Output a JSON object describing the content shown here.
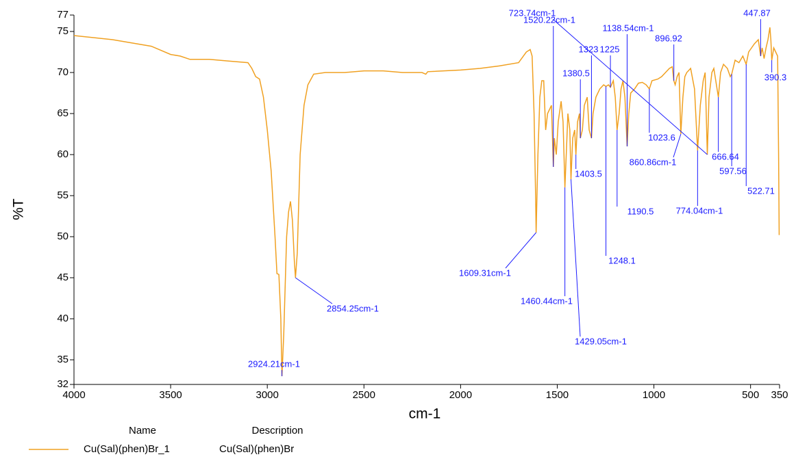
{
  "chart_data": {
    "type": "line",
    "x_label": "cm-1",
    "y_label": "%T",
    "xlim": [
      4000,
      350
    ],
    "ylim": [
      32,
      77
    ],
    "xticks": [
      4000,
      3500,
      3000,
      2500,
      2000,
      1500,
      1000,
      500,
      350
    ],
    "yticks": [
      32,
      35,
      40,
      45,
      50,
      55,
      60,
      65,
      70,
      75,
      77
    ],
    "x": [
      4000,
      3800,
      3600,
      3500,
      3450,
      3400,
      3300,
      3200,
      3100,
      3080,
      3060,
      3040,
      3020,
      3000,
      2980,
      2960,
      2950,
      2940,
      2930,
      2924.21,
      2915,
      2900,
      2890,
      2880,
      2870,
      2860,
      2854.25,
      2845,
      2830,
      2810,
      2790,
      2760,
      2700,
      2600,
      2500,
      2400,
      2300,
      2200,
      2180,
      2170,
      2000,
      1900,
      1800,
      1700,
      1660,
      1640,
      1630,
      1620,
      1612,
      1609.31,
      1600,
      1590,
      1580,
      1570,
      1560,
      1550,
      1530,
      1520.22,
      1515,
      1505,
      1495,
      1480,
      1470,
      1460.44,
      1450,
      1445,
      1435,
      1429.05,
      1420,
      1410,
      1403.5,
      1395,
      1385,
      1380.5,
      1370,
      1360,
      1345,
      1335,
      1323,
      1315,
      1300,
      1280,
      1260,
      1248.1,
      1235,
      1225,
      1210,
      1200,
      1190.5,
      1180,
      1170,
      1160,
      1150,
      1138.54,
      1130,
      1120,
      1100,
      1080,
      1060,
      1040,
      1023.6,
      1010,
      980,
      960,
      940,
      920,
      905,
      896.92,
      890,
      880,
      870,
      860.86,
      850,
      840,
      830,
      810,
      790,
      774.04,
      760,
      745,
      735,
      723.74,
      715,
      700,
      690,
      680,
      666.64,
      655,
      640,
      620,
      605,
      597.56,
      580,
      560,
      540,
      522.71,
      510,
      495,
      480,
      460,
      447.87,
      440,
      430,
      420,
      410,
      400,
      395,
      390.3,
      380,
      370,
      360,
      355,
      352
    ],
    "series": [
      {
        "name": "Cu(Sal)(phen)Br_1",
        "description": "Cu(Sal)(phen)Br",
        "color": "#f0a020",
        "values": [
          74.5,
          74,
          73.2,
          72.2,
          72,
          71.6,
          71.6,
          71.4,
          71.2,
          70.5,
          69.5,
          69.2,
          67,
          63,
          58,
          50,
          45.5,
          45.4,
          40,
          33,
          38,
          50,
          53,
          54.3,
          52,
          47,
          45,
          48,
          60,
          66,
          68.5,
          69.8,
          70,
          70,
          70.2,
          70.2,
          70,
          70,
          69.8,
          70.1,
          70.3,
          70.5,
          70.8,
          71.2,
          72.5,
          72.8,
          72,
          65,
          55,
          50.5,
          60,
          67,
          69,
          69,
          63,
          65,
          66,
          58.5,
          62,
          60,
          64,
          66.5,
          64,
          56,
          62,
          65,
          63,
          57,
          62,
          63,
          60,
          64,
          65,
          62,
          63,
          66,
          67,
          63,
          62,
          65,
          67,
          68,
          68.5,
          68.3,
          68.5,
          68.2,
          69,
          67,
          63,
          65,
          68,
          69,
          67,
          61,
          65,
          67.5,
          68,
          68.7,
          68.8,
          68.5,
          68,
          69,
          69.2,
          69.5,
          70,
          70.5,
          70.7,
          69,
          68.5,
          69.5,
          70,
          62.5,
          67,
          69.5,
          70,
          70.5,
          68,
          60.5,
          66,
          69,
          70,
          60,
          67,
          70,
          70.5,
          69,
          67,
          70,
          71,
          70.5,
          69.5,
          69.8,
          71.5,
          71.2,
          72,
          71,
          72.5,
          73,
          73.5,
          74,
          72,
          73,
          71.7,
          73,
          74,
          75.5,
          74,
          71.5,
          73,
          72.5,
          72,
          60,
          50.2
        ]
      }
    ],
    "annotations": [
      {
        "text": "1520.22cm-1",
        "x": 1520.22,
        "y": 58.5
      },
      {
        "text": "1138.54cm-1",
        "x": 1138.54,
        "y": 61
      },
      {
        "text": "723.74cm-1",
        "x": 723.74,
        "y": 60
      },
      {
        "text": "447.87",
        "x": 447.87,
        "y": 72
      },
      {
        "text": "1323",
        "x": 1323,
        "y": 62
      },
      {
        "text": "1225",
        "x": 1225,
        "y": 68.2
      },
      {
        "text": "896.92",
        "x": 896.92,
        "y": 69
      },
      {
        "text": "1380.5",
        "x": 1380.5,
        "y": 62
      },
      {
        "text": "390.3",
        "x": 390.3,
        "y": 71.5
      },
      {
        "text": "1023.6",
        "x": 1023.6,
        "y": 68
      },
      {
        "text": "666.64",
        "x": 666.64,
        "y": 67
      },
      {
        "text": "597.56",
        "x": 597.56,
        "y": 69.8
      },
      {
        "text": "522.71",
        "x": 522.71,
        "y": 71
      },
      {
        "text": "860.86cm-1",
        "x": 860.86,
        "y": 62.5
      },
      {
        "text": "1403.5",
        "x": 1403.5,
        "y": 60
      },
      {
        "text": "1190.5",
        "x": 1190.5,
        "y": 63
      },
      {
        "text": "774.04cm-1",
        "x": 774.04,
        "y": 60.5
      },
      {
        "text": "1248.1",
        "x": 1248.1,
        "y": 68.3
      },
      {
        "text": "1609.31cm-1",
        "x": 1609.31,
        "y": 50.5
      },
      {
        "text": "1460.44cm-1",
        "x": 1460.44,
        "y": 56
      },
      {
        "text": "2854.25cm-1",
        "x": 2854.25,
        "y": 45
      },
      {
        "text": "1429.05cm-1",
        "x": 1429.05,
        "y": 57
      },
      {
        "text": "2924.21cm-1",
        "x": 2924.21,
        "y": 33
      }
    ],
    "legend": {
      "name_header": "Name",
      "description_header": "Description"
    }
  }
}
